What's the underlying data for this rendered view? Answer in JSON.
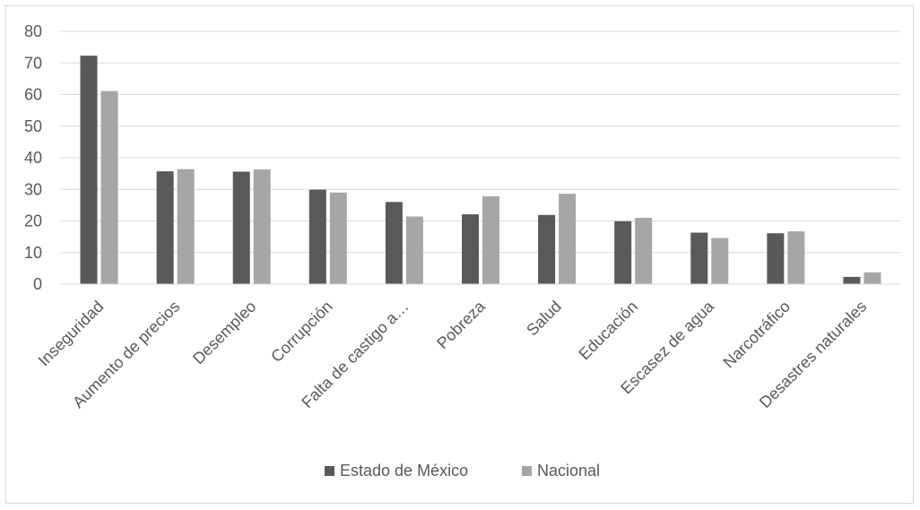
{
  "chart_data": {
    "type": "bar",
    "title": "",
    "xlabel": "",
    "ylabel": "",
    "ylim": [
      0,
      80
    ],
    "yticks": [
      0,
      10,
      20,
      30,
      40,
      50,
      60,
      70,
      80
    ],
    "grid": "horizontal",
    "legend_position": "bottom",
    "categories": [
      "Inseguridad",
      "Aumento de precios",
      "Desempleo",
      "Corrupción",
      "Falta de castigo a…",
      "Pobreza",
      "Salud",
      "Educación",
      "Escasez de agua",
      "Narcotráfico",
      "Desastres naturales"
    ],
    "series": [
      {
        "name": "Estado de México",
        "color": "#595959",
        "values": [
          72.3,
          35.7,
          35.6,
          29.9,
          26.0,
          22.1,
          21.9,
          19.9,
          16.3,
          16.1,
          2.3
        ]
      },
      {
        "name": "Nacional",
        "color": "#a6a6a6",
        "values": [
          61.1,
          36.4,
          36.3,
          29.0,
          21.4,
          27.8,
          28.6,
          21.0,
          14.6,
          16.7,
          3.7
        ]
      }
    ]
  }
}
